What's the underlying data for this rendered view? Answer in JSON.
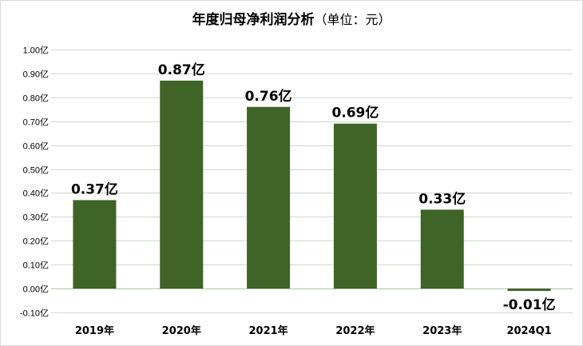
{
  "chart_data": {
    "type": "bar",
    "title": "年度归母净利润分析",
    "title_unit": "（单位：元）",
    "categories": [
      "2019年",
      "2020年",
      "2021年",
      "2022年",
      "2023年",
      "2024Q1"
    ],
    "values": [
      0.37,
      0.87,
      0.76,
      0.69,
      0.33,
      -0.01
    ],
    "data_labels": [
      "0.37亿",
      "0.87亿",
      "0.76亿",
      "0.69亿",
      "0.33亿",
      "-0.01亿"
    ],
    "ylim": [
      -0.1,
      1.0
    ],
    "yticks": [
      1.0,
      0.9,
      0.8,
      0.7,
      0.6,
      0.5,
      0.4,
      0.3,
      0.2,
      0.1,
      0.0,
      -0.1
    ],
    "ytick_labels": [
      "1.00亿",
      "0.90亿",
      "0.80亿",
      "0.70亿",
      "0.60亿",
      "0.50亿",
      "0.40亿",
      "0.30亿",
      "0.20亿",
      "0.10亿",
      "0.00亿",
      "-0.10亿"
    ],
    "xlabel": "",
    "ylabel": "",
    "grid": true,
    "legend": "none",
    "bar_color": "#3f6427"
  }
}
